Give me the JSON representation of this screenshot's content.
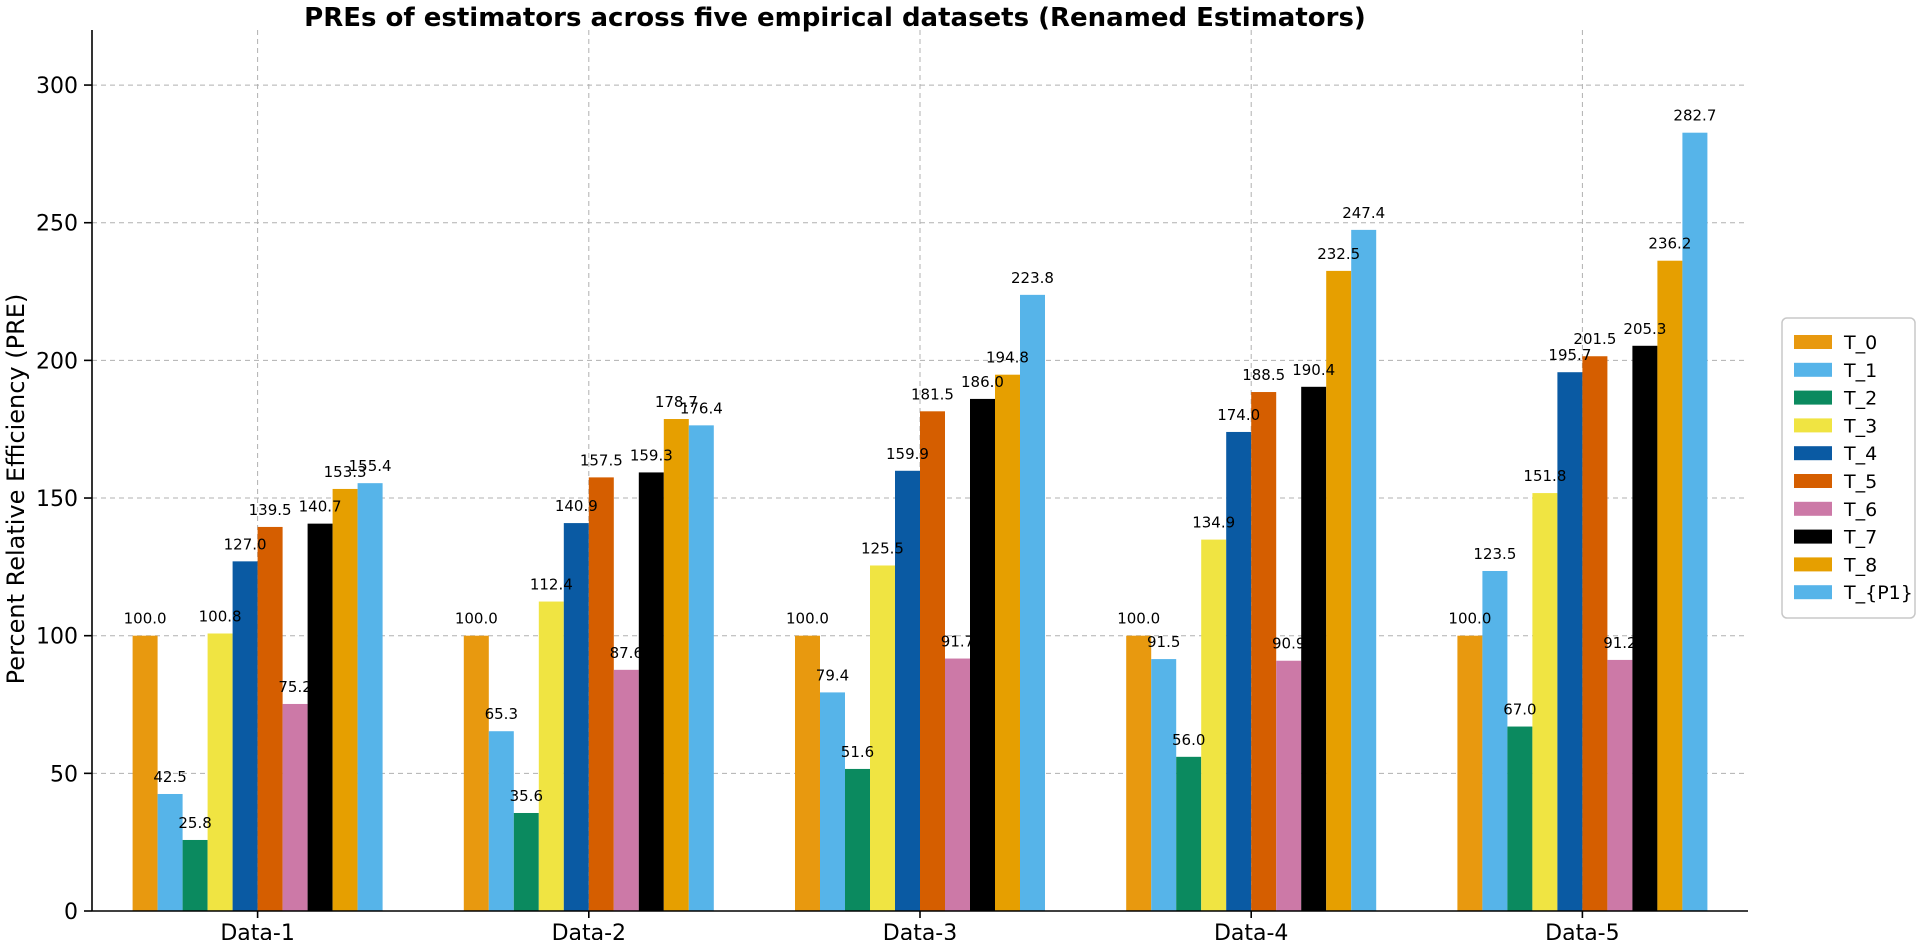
{
  "chart_data": {
    "type": "bar",
    "title": "PREs of estimators across five empirical datasets (Renamed Estimators)",
    "xlabel": "",
    "ylabel": "Percent Relative Efficiency (PRE)",
    "ylim": [
      0,
      320
    ],
    "yticks": [
      0,
      50,
      100,
      150,
      200,
      250,
      300
    ],
    "grid": true,
    "legend_position": "right",
    "categories": [
      "Data-1",
      "Data-2",
      "Data-3",
      "Data-4",
      "Data-5"
    ],
    "series": [
      {
        "name": "T_0",
        "color": "#e8990f",
        "values": [
          100.0,
          100.0,
          100.0,
          100.0,
          100.0
        ],
        "labels": [
          "100.0",
          "100.0",
          "100.0",
          "100.0",
          "100.0"
        ]
      },
      {
        "name": "T_1",
        "color": "#56b4e9",
        "values": [
          42.5,
          65.3,
          79.4,
          91.5,
          123.5
        ],
        "labels": [
          "42.5",
          "65.3",
          "79.4",
          "91.5",
          "123.5"
        ]
      },
      {
        "name": "T_2",
        "color": "#0b8a5f",
        "values": [
          25.8,
          35.6,
          51.6,
          56.0,
          67.0
        ],
        "labels": [
          "25.8",
          "35.6",
          "51.6",
          "56.0",
          "67.0"
        ]
      },
      {
        "name": "T_3",
        "color": "#f0e442",
        "values": [
          100.8,
          112.4,
          125.5,
          134.9,
          151.8
        ],
        "labels": [
          "100.8",
          "112.4",
          "125.5",
          "134.9",
          "151.8"
        ]
      },
      {
        "name": "T_4",
        "color": "#0a5aa3",
        "values": [
          127.0,
          140.9,
          159.9,
          174.0,
          195.7
        ],
        "labels": [
          "127.0",
          "140.9",
          "159.9",
          "174.0",
          "195.7"
        ]
      },
      {
        "name": "T_5",
        "color": "#d55e00",
        "values": [
          139.5,
          157.5,
          181.5,
          188.5,
          201.5
        ],
        "labels": [
          "139.5",
          "157.5",
          "181.5",
          "188.5",
          "201.5"
        ]
      },
      {
        "name": "T_6",
        "color": "#cc79a7",
        "values": [
          75.2,
          87.6,
          91.7,
          90.9,
          91.2
        ],
        "labels": [
          "75.2",
          "87.6",
          "91.7",
          "90.9",
          "91.2"
        ]
      },
      {
        "name": "T_7",
        "color": "#000000",
        "values": [
          140.7,
          159.3,
          186.0,
          190.4,
          205.3
        ],
        "labels": [
          "140.7",
          "159.3",
          "186.0",
          "190.4",
          "205.3"
        ]
      },
      {
        "name": "T_8",
        "color": "#e69f00",
        "values": [
          153.3,
          178.7,
          194.8,
          232.5,
          236.2
        ],
        "labels": [
          "153.3",
          "178.7",
          "194.8",
          "232.5",
          "236.2"
        ]
      },
      {
        "name": "T_{P1}",
        "color": "#56b4e9",
        "values": [
          155.4,
          176.4,
          223.8,
          247.4,
          282.7
        ],
        "labels": [
          "155.4",
          "176.4",
          "223.8",
          "247.4",
          "282.7"
        ]
      }
    ]
  }
}
